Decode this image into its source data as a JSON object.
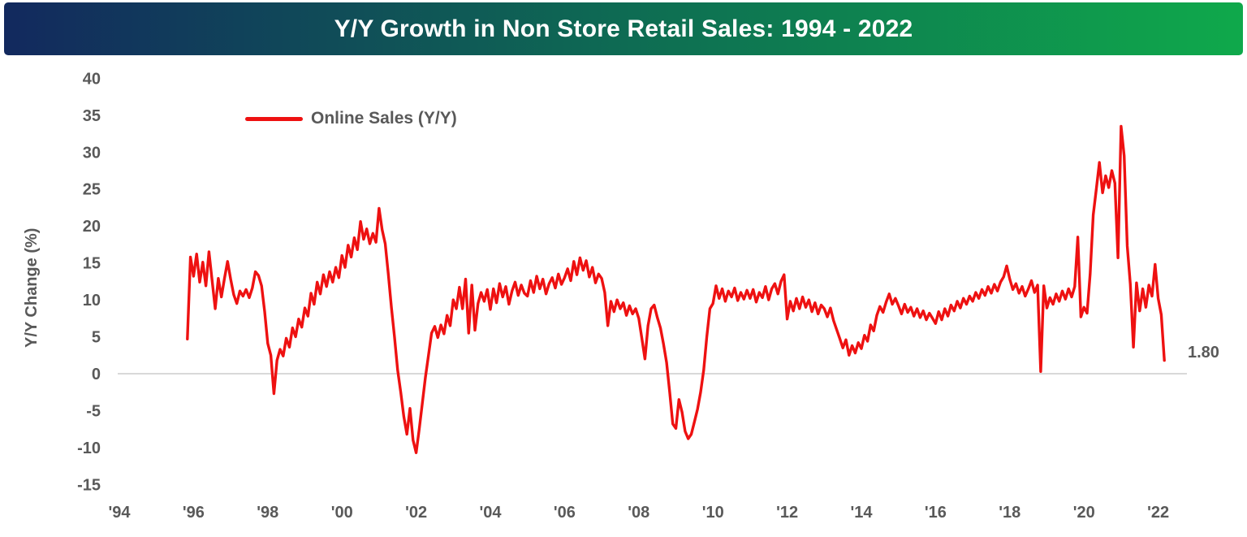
{
  "header": {
    "title": "Y/Y Growth in Non Store Retail Sales: 1994 - 2022",
    "gradient_left": "#12295E",
    "gradient_mid": "#0E6B53",
    "gradient_right": "#0FA94B",
    "text_color": "#FFFFFF"
  },
  "chart_data": {
    "type": "line",
    "title": "Y/Y Growth in Non Store Retail Sales: 1994 - 2022",
    "xlabel": "",
    "ylabel": "Y/Y Change (%)",
    "ylim": [
      -15,
      40
    ],
    "y_ticks": [
      40,
      35,
      30,
      25,
      20,
      15,
      10,
      5,
      0,
      -5,
      -10,
      -15
    ],
    "x_tick_labels": [
      "'94",
      "'96",
      "'98",
      "'00",
      "'02",
      "'04",
      "'06",
      "'08",
      "'10",
      "'12",
      "'14",
      "'16",
      "'18",
      "'20",
      "'22"
    ],
    "x_tick_years": [
      1994,
      1996,
      1998,
      2000,
      2002,
      2004,
      2006,
      2008,
      2010,
      2012,
      2014,
      2016,
      2018,
      2020,
      2022
    ],
    "grid": "zero-line-only",
    "grid_color": "#D9D9D9",
    "line_color": "#EE1111",
    "text_color": "#595959",
    "legend": {
      "label": "Online Sales (Y/Y)",
      "position": "top-left-inset"
    },
    "end_label": "1.80",
    "series": [
      {
        "name": "Online Sales (Y/Y)",
        "start": "1995-11",
        "frequency": "monthly",
        "values": [
          4.7,
          15.8,
          13.2,
          16.2,
          12.4,
          15.1,
          11.9,
          16.5,
          12.6,
          8.8,
          12.9,
          10.4,
          12.9,
          15.2,
          12.8,
          10.7,
          9.5,
          11.2,
          10.5,
          11.4,
          10.3,
          11.6,
          13.8,
          13.3,
          11.9,
          8.4,
          4.1,
          2.5,
          -2.7,
          1.8,
          3.3,
          2.4,
          4.8,
          3.6,
          6.2,
          5.0,
          7.4,
          6.3,
          8.9,
          7.8,
          10.9,
          9.4,
          12.4,
          10.8,
          13.4,
          11.8,
          13.8,
          12.4,
          14.4,
          13.0,
          16.0,
          14.4,
          17.4,
          15.8,
          18.4,
          16.8,
          20.6,
          18.2,
          19.6,
          17.6,
          19.0,
          17.8,
          22.4,
          19.5,
          17.6,
          13.5,
          9.0,
          5.0,
          0.5,
          -2.5,
          -5.8,
          -8.2,
          -4.7,
          -9.0,
          -10.7,
          -7.5,
          -4.0,
          -0.5,
          2.5,
          5.5,
          6.4,
          4.9,
          6.6,
          5.4,
          7.9,
          6.5,
          10.0,
          8.8,
          11.7,
          8.8,
          12.8,
          5.5,
          12.0,
          5.9,
          9.5,
          11.0,
          9.8,
          11.4,
          8.7,
          11.5,
          9.6,
          12.2,
          10.4,
          11.8,
          9.4,
          11.2,
          12.4,
          10.6,
          12.0,
          10.9,
          10.5,
          12.6,
          11.0,
          13.2,
          11.5,
          12.8,
          10.8,
          12.2,
          13.0,
          11.6,
          13.5,
          12.1,
          13.0,
          14.2,
          12.6,
          15.2,
          13.4,
          15.7,
          14.0,
          15.3,
          13.1,
          14.4,
          12.3,
          13.5,
          12.9,
          11.0,
          6.5,
          9.8,
          8.4,
          10.0,
          8.8,
          9.6,
          7.9,
          9.2,
          8.1,
          8.8,
          7.5,
          4.8,
          2.0,
          6.5,
          8.8,
          9.3,
          7.6,
          6.2,
          4.0,
          1.5,
          -2.5,
          -6.8,
          -7.4,
          -3.5,
          -5.2,
          -7.8,
          -8.8,
          -8.2,
          -6.5,
          -4.8,
          -2.5,
          0.5,
          5.0,
          8.8,
          9.5,
          11.9,
          10.2,
          11.5,
          9.8,
          11.2,
          10.4,
          11.6,
          9.9,
          11.0,
          10.1,
          11.3,
          10.2,
          11.4,
          9.7,
          11.0,
          10.3,
          11.8,
          10.0,
          11.5,
          12.2,
          10.8,
          12.5,
          13.4,
          7.4,
          9.8,
          8.5,
          10.2,
          8.8,
          10.4,
          9.0,
          10.0,
          8.4,
          9.6,
          8.1,
          9.3,
          8.8,
          7.7,
          8.9,
          7.2,
          6.0,
          4.8,
          3.5,
          4.6,
          2.5,
          3.8,
          2.8,
          4.2,
          3.4,
          5.2,
          4.4,
          6.6,
          5.8,
          7.9,
          9.1,
          8.3,
          9.7,
          10.8,
          9.4,
          10.2,
          9.2,
          8.1,
          9.4,
          8.3,
          9.0,
          7.8,
          8.8,
          7.6,
          8.5,
          7.3,
          8.2,
          7.5,
          6.8,
          8.4,
          7.3,
          8.8,
          7.8,
          9.3,
          8.5,
          9.8,
          8.9,
          10.2,
          9.4,
          10.5,
          9.8,
          11.0,
          10.2,
          11.4,
          10.6,
          11.8,
          10.9,
          12.1,
          11.2,
          12.4,
          13.1,
          14.6,
          12.8,
          11.4,
          12.2,
          10.9,
          11.8,
          10.5,
          11.5,
          12.6,
          11.0,
          12.0,
          0.3,
          11.9,
          8.9,
          10.3,
          9.4,
          10.8,
          9.8,
          11.2,
          10.1,
          11.5,
          10.4,
          11.8,
          18.5,
          7.7,
          9.0,
          8.2,
          13.5,
          21.5,
          25.0,
          28.6,
          24.5,
          26.8,
          25.2,
          27.5,
          25.8,
          15.7,
          33.5,
          29.5,
          17.3,
          12.1,
          3.6,
          12.3,
          8.5,
          11.5,
          9.0,
          12.0,
          10.5,
          14.8,
          10.2,
          8.0,
          1.8
        ]
      }
    ]
  }
}
